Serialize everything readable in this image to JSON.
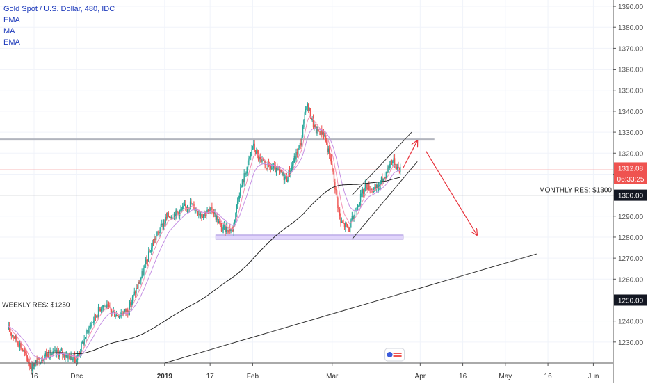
{
  "chart_data": {
    "type": "candlestick",
    "title": "Gold Spot / U.S. Dollar, 480, IDC",
    "indicators": [
      "EMA",
      "MA",
      "EMA"
    ],
    "ylim": [
      1220,
      1393
    ],
    "y_ticks": [
      "1230.00",
      "1240.00",
      "1250.00",
      "1260.00",
      "1270.00",
      "1280.00",
      "1290.00",
      "1300.00",
      "1310.00",
      "1320.00",
      "1330.00",
      "1340.00",
      "1350.00",
      "1360.00",
      "1370.00",
      "1380.00",
      "1390.00"
    ],
    "x_labels": [
      {
        "date": "2018-11-16",
        "label": "16",
        "bold": false
      },
      {
        "date": "2018-12-01",
        "label": "Dec",
        "bold": false
      },
      {
        "date": "2019-01-01",
        "label": "2019",
        "bold": true
      },
      {
        "date": "2019-01-17",
        "label": "17",
        "bold": false
      },
      {
        "date": "2019-02-01",
        "label": "Feb",
        "bold": false
      },
      {
        "date": "2019-03-01",
        "label": "Mar",
        "bold": false
      },
      {
        "date": "2019-04-01",
        "label": "Apr",
        "bold": false
      },
      {
        "date": "2019-04-16",
        "label": "16",
        "bold": false
      },
      {
        "date": "2019-05-01",
        "label": "May",
        "bold": false
      },
      {
        "date": "2019-05-16",
        "label": "16",
        "bold": false
      },
      {
        "date": "2019-06-01",
        "label": "Jun",
        "bold": false
      }
    ],
    "price_anchors": [
      [
        "2018-11-07",
        1236
      ],
      [
        "2018-11-11",
        1229
      ],
      [
        "2018-11-15",
        1218
      ],
      [
        "2018-11-20",
        1224
      ],
      [
        "2018-11-25",
        1225
      ],
      [
        "2018-12-01",
        1222
      ],
      [
        "2018-12-05",
        1236
      ],
      [
        "2018-12-10",
        1248
      ],
      [
        "2018-12-15",
        1243
      ],
      [
        "2018-12-19",
        1245
      ],
      [
        "2018-12-24",
        1262
      ],
      [
        "2018-12-28",
        1278
      ],
      [
        "2019-01-02",
        1290
      ],
      [
        "2019-01-06",
        1292
      ],
      [
        "2019-01-10",
        1296
      ],
      [
        "2019-01-14",
        1291
      ],
      [
        "2019-01-18",
        1293
      ],
      [
        "2019-01-21",
        1284
      ],
      [
        "2019-01-25",
        1284
      ],
      [
        "2019-01-27",
        1300
      ],
      [
        "2019-01-31",
        1318
      ],
      [
        "2019-02-01",
        1324
      ],
      [
        "2019-02-04",
        1315
      ],
      [
        "2019-02-08",
        1313
      ],
      [
        "2019-02-13",
        1308
      ],
      [
        "2019-02-18",
        1325
      ],
      [
        "2019-02-20",
        1344
      ],
      [
        "2019-02-23",
        1331
      ],
      [
        "2019-02-26",
        1330
      ],
      [
        "2019-03-01",
        1313
      ],
      [
        "2019-03-04",
        1287
      ],
      [
        "2019-03-07",
        1284
      ],
      [
        "2019-03-10",
        1296
      ],
      [
        "2019-03-13",
        1305
      ],
      [
        "2019-03-16",
        1302
      ],
      [
        "2019-03-19",
        1308
      ],
      [
        "2019-03-22",
        1317
      ],
      [
        "2019-03-25",
        1312.08
      ]
    ],
    "last_price": "1312.08",
    "countdown": "06:33:25",
    "levels": [
      {
        "price": 1300,
        "label": "MONTHLY RES: $1300",
        "tag": "1300.00"
      },
      {
        "price": 1250,
        "label": "WEEKLY RES: $1250",
        "tag": "1250.00"
      },
      {
        "price": 1326.5
      }
    ],
    "support_zone": {
      "date_start": "2019-01-19",
      "date_end": "2019-03-26",
      "price_low": 1279,
      "price_high": 1281
    },
    "trendline": {
      "start": [
        "2019-01-01",
        1220
      ],
      "end": [
        "2019-05-12",
        1272
      ]
    },
    "channel": {
      "upper": [
        [
          "2019-03-08",
          1300
        ],
        [
          "2019-03-29",
          1330
        ]
      ],
      "lower": [
        [
          "2019-03-08",
          1279
        ],
        [
          "2019-03-31",
          1316
        ]
      ]
    },
    "arrows": [
      {
        "from": [
          "2019-03-26",
          1313
        ],
        "to": [
          "2019-03-31",
          1326
        ]
      },
      {
        "from": [
          "2019-04-03",
          1321
        ],
        "to": [
          "2019-04-21",
          1281
        ]
      }
    ],
    "colors": {
      "up": "#26a69a",
      "down": "#ef5350",
      "arrow": "#e8333c",
      "legend": "#1c39bb",
      "zone_fill": "#e1d5fb",
      "zone_border": "#a48fdc"
    }
  }
}
